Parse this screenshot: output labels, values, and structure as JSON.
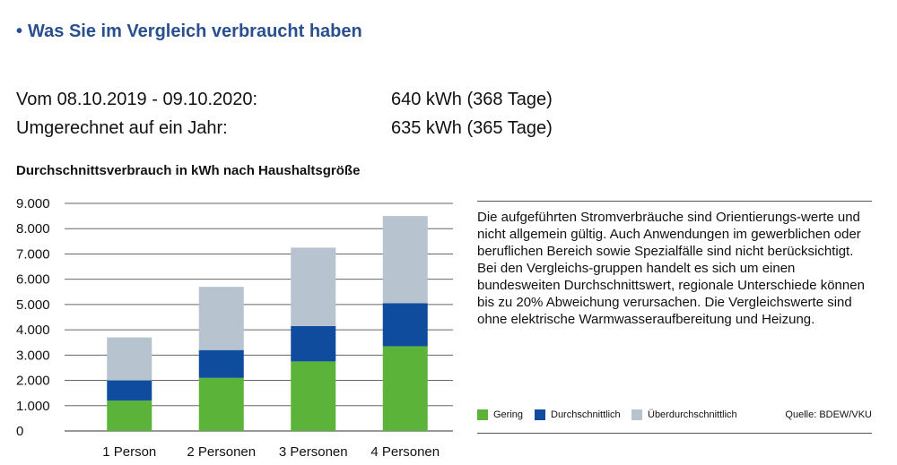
{
  "heading": {
    "bullet": "•",
    "text": "Was Sie im Vergleich verbraucht haben"
  },
  "summary": [
    {
      "label": "Vom 08.10.2019 - 09.10.2020:",
      "value": "640 kWh (368 Tage)"
    },
    {
      "label": "Umgerechnet auf ein Jahr:",
      "value": "635 kWh (365 Tage)"
    }
  ],
  "note": "Die aufgeführten Stromverbräuche sind Orientierungs-werte und nicht allgemein gültig. Auch Anwendungen im gewerblichen oder beruflichen Bereich sowie Spezialfälle sind nicht berücksichtigt. Bei den Vergleichs-gruppen handelt es sich um einen bundesweiten Durchschnittswert, regionale Unterschiede können bis zu 20% Abweichung verursachen. Die Vergleichswerte sind ohne elektrische Warmwasseraufbereitung und Heizung.",
  "source": "Quelle: BDEW/VKU",
  "colors": {
    "gering": "#5bb33a",
    "durchschnittlich": "#0f4c9e",
    "ueberdurchschnittlich": "#b7c4cf",
    "heading": "#2a4f8f"
  },
  "chart_data": {
    "type": "bar",
    "stacked": true,
    "title": "Durchschnittsverbrauch in kWh nach Haushaltsgröße",
    "categories": [
      "1 Person",
      "2 Personen",
      "3 Personen",
      "4 Personen"
    ],
    "ylim": [
      0,
      9000
    ],
    "yticks": [
      0,
      1000,
      2000,
      3000,
      4000,
      5000,
      6000,
      7000,
      8000,
      9000
    ],
    "ytick_labels": [
      "0",
      "1.000",
      "2.000",
      "3.000",
      "4.000",
      "5.000",
      "6.000",
      "7.000",
      "8.000",
      "9.000"
    ],
    "grid": true,
    "legend_position": "bottom",
    "series": [
      {
        "name": "Gering",
        "color": "#5bb33a",
        "values": [
          1200,
          2100,
          2750,
          3350
        ]
      },
      {
        "name": "Durchschnittlich",
        "color": "#0f4c9e",
        "values": [
          800,
          1100,
          1400,
          1700
        ]
      },
      {
        "name": "Überdurchschnittlich",
        "color": "#b7c4cf",
        "values": [
          1700,
          2500,
          3100,
          3450
        ]
      }
    ]
  }
}
